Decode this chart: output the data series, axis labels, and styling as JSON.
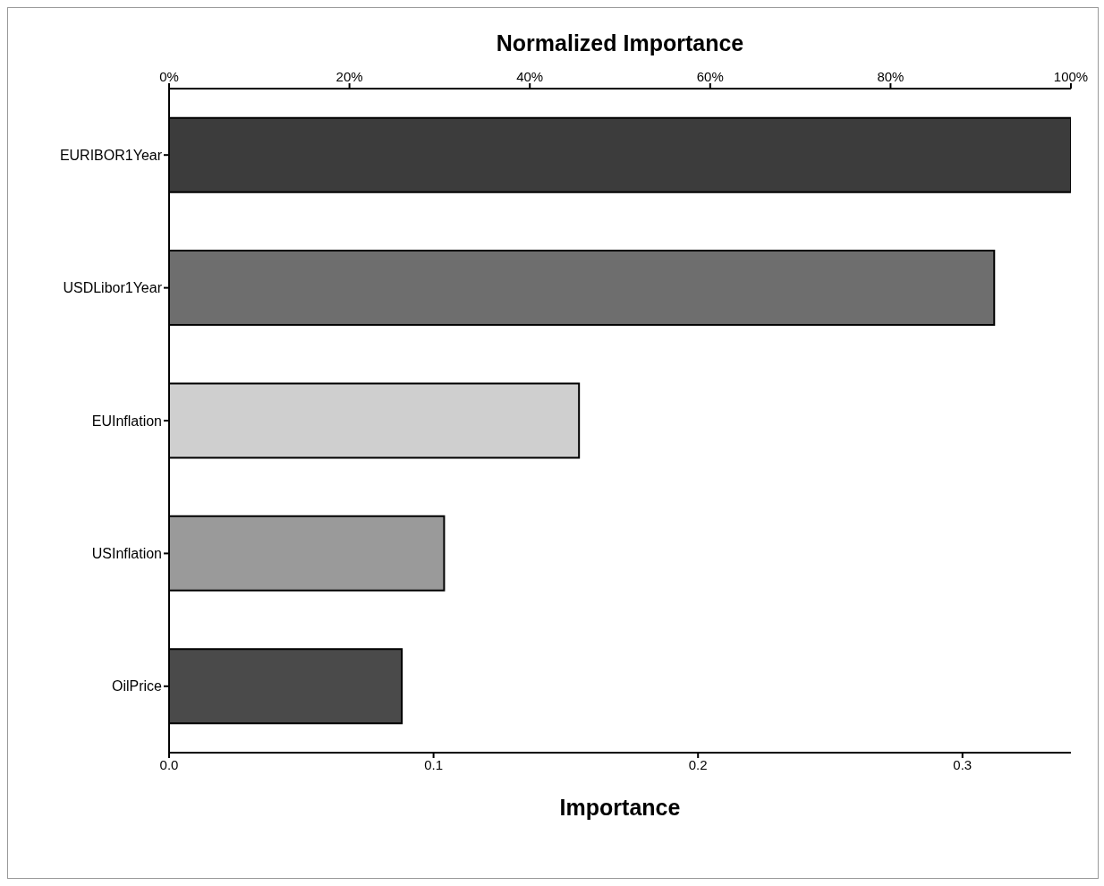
{
  "chart_data": {
    "type": "bar",
    "orientation": "horizontal",
    "categories": [
      "EURIBOR1Year",
      "USDLibor1Year",
      "EUInflation",
      "USInflation",
      "OilPrice"
    ],
    "values": [
      0.341,
      0.312,
      0.155,
      0.104,
      0.088
    ],
    "colors": [
      "#3c3c3c",
      "#6e6e6e",
      "#cfcfcf",
      "#9a9a9a",
      "#4a4a4a"
    ],
    "xlabel": "Importance",
    "x2label": "Normalized Importance",
    "xlim": [
      0,
      0.341
    ],
    "xticks": [
      {
        "value": 0,
        "label": "0.0"
      },
      0.1,
      0.2,
      0.3
    ],
    "x2lim": [
      0,
      100
    ],
    "x2ticks": [
      {
        "value": 0,
        "label": "0%"
      },
      {
        "value": 20,
        "label": "20%"
      },
      {
        "value": 40,
        "label": "40%"
      },
      {
        "value": 60,
        "label": "60%"
      },
      {
        "value": 80,
        "label": "80%"
      },
      {
        "value": 100,
        "label": "100%"
      }
    ],
    "grid": false,
    "legend": false
  }
}
